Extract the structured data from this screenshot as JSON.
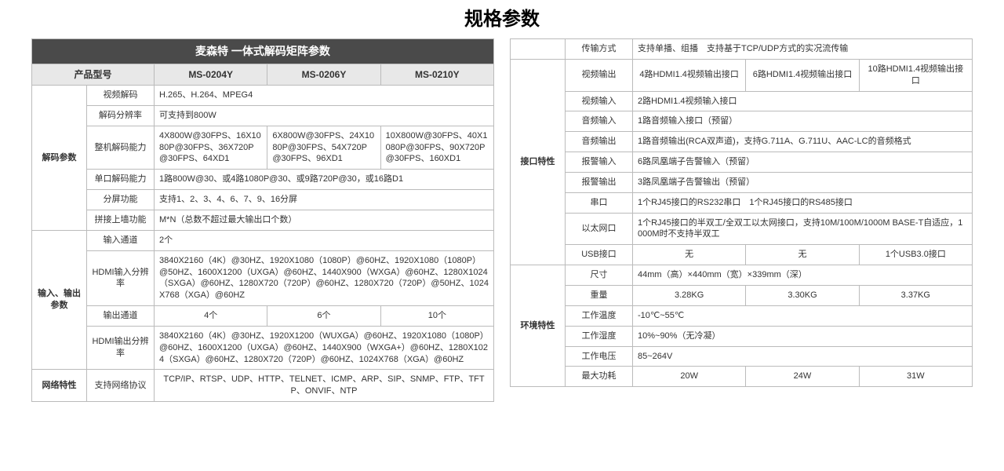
{
  "title": "规格参数",
  "left": {
    "banner": "麦森特 一体式解码矩阵参数",
    "modelHeader": "产品型号",
    "models": [
      "MS-0204Y",
      "MS-0206Y",
      "MS-0210Y"
    ],
    "groups": [
      {
        "name": "解码参数",
        "rows": [
          {
            "label": "视频解码",
            "span": true,
            "val": "H.265、H.264、MPEG4"
          },
          {
            "label": "解码分辨率",
            "span": true,
            "val": "可支持到800W"
          },
          {
            "label": "整机解码能力",
            "vals": [
              "4X800W@30FPS、16X1080P@30FPS、36X720P@30FPS、64XD1",
              "6X800W@30FPS、24X1080P@30FPS、54X720P@30FPS、96XD1",
              "10X800W@30FPS、40X1080P@30FPS、90X720P@30FPS、160XD1"
            ]
          },
          {
            "label": "单口解码能力",
            "span": true,
            "val": "1路800W@30、或4路1080P@30、或9路720P@30，或16路D1"
          },
          {
            "label": "分屏功能",
            "span": true,
            "val": "支持1、2、3、4、6、7、9、16分屏"
          },
          {
            "label": "拼接上墙功能",
            "span": true,
            "val": "M*N（总数不超过最大输出口个数）"
          }
        ]
      },
      {
        "name": "输入、输出参数",
        "rows": [
          {
            "label": "输入通道",
            "span": true,
            "val": "2个"
          },
          {
            "label": "HDMI输入分辨率",
            "span": true,
            "val": "3840X2160（4K）@30HZ、1920X1080（1080P）@60HZ、1920X1080（1080P）@50HZ、1600X1200（UXGA）@60HZ、1440X900（WXGA）@60HZ、1280X1024（SXGA）@60HZ、1280X720（720P）@60HZ、1280X720（720P）@50HZ、1024X768（XGA）@60HZ"
          },
          {
            "label": "输出通道",
            "vals": [
              "4个",
              "6个",
              "10个"
            ],
            "center": true
          },
          {
            "label": "HDMI输出分辨率",
            "span": true,
            "val": "3840X2160（4K）@30HZ、1920X1200（WUXGA）@60HZ、1920X1080（1080P）@60HZ、1600X1200（UXGA）@60HZ、1440X900（WXGA+）@60HZ、1280X1024（SXGA）@60HZ、1280X720（720P）@60HZ、1024X768（XGA）@60HZ"
          }
        ]
      },
      {
        "name": "网络特性",
        "rows": [
          {
            "label": "支持网络协议",
            "span": true,
            "val": "TCP/IP、RTSP、UDP、HTTP、TELNET、ICMP、ARP、SIP、SNMP、FTP、TFTP、ONVIF、NTP",
            "center": true
          }
        ]
      }
    ]
  },
  "right": {
    "pregroup": {
      "label": "传输方式",
      "span": true,
      "val": "支持单播、组播　支持基于TCP/UDP方式的实况流传输"
    },
    "groups": [
      {
        "name": "接口特性",
        "rows": [
          {
            "label": "视频输出",
            "vals": [
              "4路HDMI1.4视频输出接口",
              "6路HDMI1.4视频输出接口",
              "10路HDMI1.4视频输出接口"
            ],
            "center": true
          },
          {
            "label": "视频输入",
            "span": true,
            "val": "2路HDMI1.4视频输入接口"
          },
          {
            "label": "音频输入",
            "span": true,
            "val": "1路音频输入接口（预留）"
          },
          {
            "label": "音频输出",
            "span": true,
            "val": "1路音频输出(RCA双声道)，支持G.711A、G.711U、AAC-LC的音频格式"
          },
          {
            "label": "报警输入",
            "span": true,
            "val": "6路凤凰端子告警输入（预留）"
          },
          {
            "label": "报警输出",
            "span": true,
            "val": "3路凤凰端子告警输出（预留）"
          },
          {
            "label": "串口",
            "span": true,
            "val": "1个RJ45接口的RS232串口　1个RJ45接口的RS485接口"
          },
          {
            "label": "以太网口",
            "span": true,
            "val": "1个RJ45接口的半双工/全双工以太网接口，支持10M/100M/1000M BASE-T自适应，1000M时不支持半双工"
          },
          {
            "label": "USB接口",
            "vals": [
              "无",
              "无",
              "1个USB3.0接口"
            ],
            "center": true
          }
        ]
      },
      {
        "name": "环境特性",
        "rows": [
          {
            "label": "尺寸",
            "span": true,
            "val": "44mm（高）×440mm（宽）×339mm（深）"
          },
          {
            "label": "重量",
            "vals": [
              "3.28KG",
              "3.30KG",
              "3.37KG"
            ],
            "center": true
          },
          {
            "label": "工作温度",
            "span": true,
            "val": "-10℃~55℃"
          },
          {
            "label": "工作湿度",
            "span": true,
            "val": "10%~90%（无冷凝）"
          },
          {
            "label": "工作电压",
            "span": true,
            "val": "85~264V"
          },
          {
            "label": "最大功耗",
            "vals": [
              "20W",
              "24W",
              "31W"
            ],
            "center": true
          }
        ]
      }
    ]
  },
  "style": {
    "colWidths": {
      "group": 70,
      "label": 86
    }
  }
}
